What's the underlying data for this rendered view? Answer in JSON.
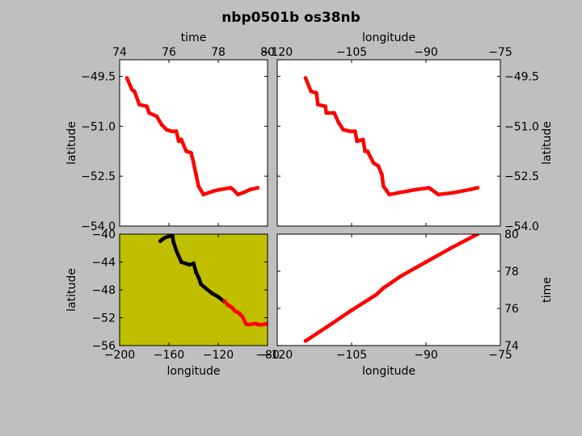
{
  "figure": {
    "title": "nbp0501b os38nb",
    "background": "#bfbfbf"
  },
  "chart_data": [
    {
      "id": "top-left",
      "type": "line",
      "xlabel": "time",
      "xlabel_position": "top",
      "ylabel": "latitude",
      "ylabel_position": "left",
      "xlim": [
        74,
        80
      ],
      "ylim": [
        -54.0,
        -49.0
      ],
      "xticks": [
        74,
        76,
        78,
        80
      ],
      "xtick_labels": [
        "74",
        "76",
        "78",
        "80"
      ],
      "yticks": [
        -49.5,
        -51.0,
        -52.5,
        -54.0
      ],
      "ytick_labels": [
        "−49.5",
        "−51.0",
        "−52.5",
        "−54.0"
      ],
      "series": [
        {
          "color": "#ff0000",
          "x": [
            74.3,
            74.5,
            74.6,
            74.8,
            75.1,
            75.2,
            75.5,
            75.7,
            75.9,
            76.1,
            76.3,
            76.4,
            76.5,
            76.7,
            76.9,
            77.0,
            77.1,
            77.2,
            77.4,
            77.8,
            78.1,
            78.5,
            78.6,
            78.8,
            79.0,
            79.3,
            79.6
          ],
          "y": [
            -49.55,
            -49.9,
            -49.95,
            -50.35,
            -50.4,
            -50.6,
            -50.7,
            -50.95,
            -51.1,
            -51.15,
            -51.15,
            -51.45,
            -51.4,
            -51.75,
            -51.8,
            -52.1,
            -52.45,
            -52.8,
            -53.05,
            -52.95,
            -52.9,
            -52.85,
            -52.9,
            -53.05,
            -53.0,
            -52.9,
            -52.85
          ]
        }
      ]
    },
    {
      "id": "top-right",
      "type": "line",
      "xlabel": "longitude",
      "xlabel_position": "top",
      "ylabel": "latitude",
      "ylabel_position": "right",
      "xlim": [
        -120,
        -75
      ],
      "ylim": [
        -54.0,
        -49.0
      ],
      "xticks": [
        -120,
        -105,
        -90,
        -75
      ],
      "xtick_labels": [
        "−120",
        "−105",
        "−90",
        "−75"
      ],
      "yticks": [
        -49.5,
        -51.0,
        -52.5,
        -54.0
      ],
      "ytick_labels": [
        "−49.5",
        "−51.0",
        "−52.5",
        "−54.0"
      ],
      "series": [
        {
          "color": "#ff0000",
          "x": [
            -114.3,
            -113.2,
            -112.1,
            -111.8,
            -110.3,
            -110.1,
            -108.5,
            -107.6,
            -106.7,
            -105.4,
            -104.3,
            -103.9,
            -102.7,
            -102.3,
            -101.8,
            -100.6,
            -99.6,
            -98.9,
            -98.6,
            -97.4,
            -95.6,
            -91.9,
            -89.4,
            -88.9,
            -87.5,
            -84.6,
            -81.1,
            -79.6
          ],
          "y": [
            -49.55,
            -49.95,
            -50.0,
            -50.35,
            -50.4,
            -50.6,
            -50.6,
            -50.9,
            -51.1,
            -51.15,
            -51.15,
            -51.45,
            -51.4,
            -51.75,
            -51.75,
            -52.1,
            -52.2,
            -52.45,
            -52.8,
            -53.05,
            -53.0,
            -52.9,
            -52.85,
            -52.9,
            -53.05,
            -53.0,
            -52.9,
            -52.85
          ]
        }
      ]
    },
    {
      "id": "bottom-left",
      "type": "line",
      "xlabel": "longitude",
      "xlabel_position": "bottom",
      "ylabel": "latitude",
      "ylabel_position": "left",
      "background": "#bfbf00",
      "xlim": [
        -200,
        -80
      ],
      "ylim": [
        -56,
        -40
      ],
      "xticks": [
        -200,
        -160,
        -120,
        -80
      ],
      "xtick_labels": [
        "−200",
        "−160",
        "−120",
        "−80"
      ],
      "yticks": [
        -40,
        -44,
        -48,
        -52,
        -56
      ],
      "ytick_labels": [
        "−40",
        "−44",
        "−48",
        "−52",
        "−56"
      ],
      "series": [
        {
          "color": "#000000",
          "x": [
            -167,
            -165,
            -163,
            -160,
            -157,
            -156.5,
            -154,
            -150,
            -145,
            -143,
            -140,
            -138,
            -136,
            -134,
            -130,
            -125,
            -120,
            -115
          ],
          "y": [
            -41.0,
            -40.7,
            -40.5,
            -40.3,
            -40.3,
            -41.0,
            -42.4,
            -44.0,
            -44.3,
            -44.4,
            -44.2,
            -45.5,
            -46.2,
            -47.2,
            -47.8,
            -48.5,
            -49.0,
            -49.7
          ]
        },
        {
          "color": "#ff0000",
          "x": [
            -115,
            -113,
            -112,
            -110,
            -108.5,
            -106.7,
            -105.4,
            -104.3,
            -102.7,
            -101.8,
            -100.6,
            -99.6,
            -98.6,
            -97.4,
            -95.6,
            -91.9,
            -89.4,
            -88.9,
            -87.5,
            -84.6,
            -81.1,
            -80.0
          ],
          "y": [
            -49.6,
            -50.0,
            -50.2,
            -50.4,
            -50.6,
            -51.0,
            -51.15,
            -51.2,
            -51.4,
            -51.6,
            -51.8,
            -52.1,
            -52.5,
            -52.9,
            -53.0,
            -52.9,
            -52.85,
            -52.9,
            -53.0,
            -53.0,
            -52.9,
            -52.85
          ]
        }
      ]
    },
    {
      "id": "bottom-right",
      "type": "line",
      "xlabel": "longitude",
      "xlabel_position": "bottom",
      "ylabel": "time",
      "ylabel_position": "right",
      "xlim": [
        -120,
        -75
      ],
      "ylim": [
        74,
        80
      ],
      "xticks": [
        -120,
        -105,
        -90,
        -75
      ],
      "xtick_labels": [
        "−120",
        "−105",
        "−90",
        "−75"
      ],
      "yticks": [
        74,
        76,
        78,
        80
      ],
      "ytick_labels": [
        "74",
        "76",
        "78",
        "80"
      ],
      "series": [
        {
          "color": "#ff0000",
          "x": [
            -114.3,
            -110,
            -105,
            -100,
            -98.6,
            -95,
            -90,
            -85,
            -79.6
          ],
          "y": [
            74.25,
            75.0,
            75.9,
            76.75,
            77.1,
            77.75,
            78.5,
            79.25,
            80.0
          ]
        }
      ]
    }
  ]
}
